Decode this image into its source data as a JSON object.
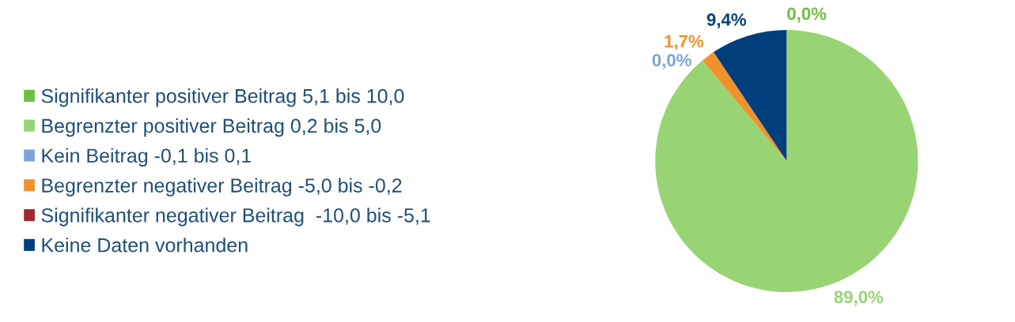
{
  "chart_data": {
    "type": "pie",
    "categories": [
      "Signifikanter positiver Beitrag 5,1 bis 10,0",
      "Begrenzter positiver Beitrag 0,2 bis 5,0",
      "Kein Beitrag -0,1 bis 0,1",
      "Begrenzter negativer Beitrag -5,0 bis -0,2",
      "Signifikanter negativer Beitrag  -10,0 bis -5,1",
      "Keine Daten vorhanden"
    ],
    "values": [
      0.0,
      89.0,
      0.0,
      1.7,
      0,
      9.4
    ],
    "colors": [
      "#6fbe44",
      "#98d474",
      "#7aa5d6",
      "#f0922b",
      "#9e2a2b",
      "#003f7b"
    ],
    "value_labels": [
      "0,0%",
      "89,0%",
      "0,0%",
      "1,7%",
      null,
      "9,4%"
    ],
    "legend": "left"
  }
}
